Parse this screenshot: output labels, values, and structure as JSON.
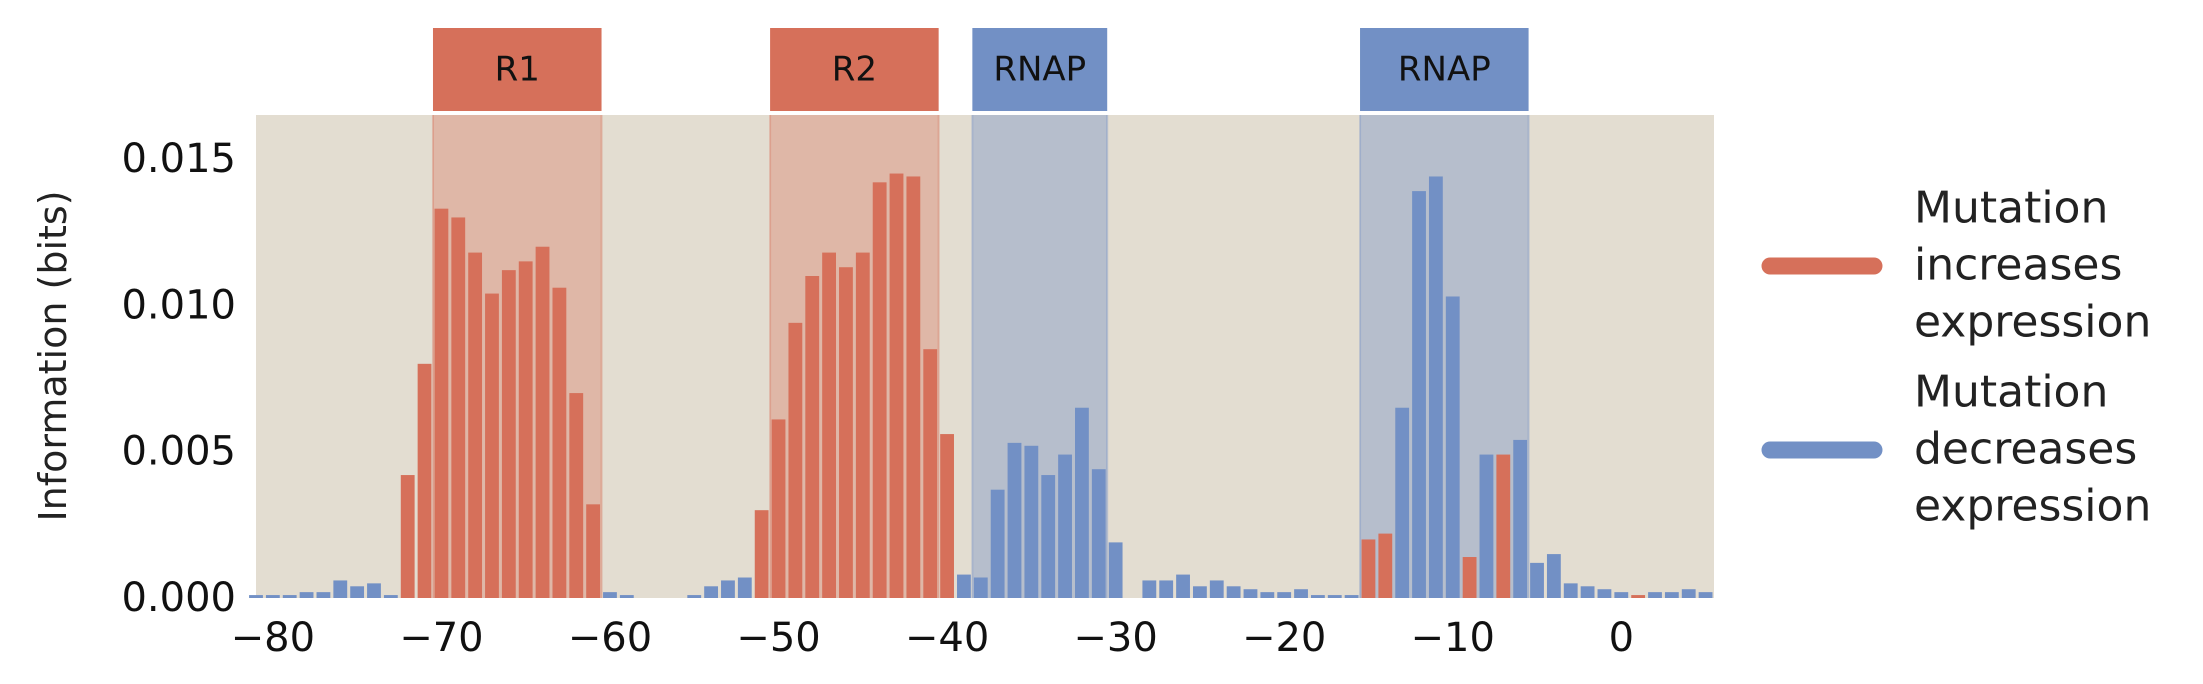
{
  "chart_data": {
    "type": "bar",
    "ylabel": "Information (bits)",
    "xlim": [
      -81,
      5.5
    ],
    "ylim": [
      0,
      0.0165
    ],
    "xticks": [
      -80,
      -70,
      -60,
      -50,
      -40,
      -30,
      -20,
      -10,
      0
    ],
    "xtick_labels": [
      "−80",
      "−70",
      "−60",
      "−50",
      "−40",
      "−30",
      "−20",
      "−10",
      "0"
    ],
    "yticks": [
      0.0,
      0.005,
      0.01,
      0.015
    ],
    "ytick_labels": [
      "0.000",
      "0.005",
      "0.010",
      "0.015"
    ],
    "grid": false,
    "background": "#e3ddd1",
    "colors": {
      "increase": "#d6705a",
      "decrease": "#7290c5"
    },
    "regions": [
      {
        "label": "R1",
        "start": -70.5,
        "end": -60.5,
        "type": "increase"
      },
      {
        "label": "R2",
        "start": -50.5,
        "end": -40.5,
        "type": "increase"
      },
      {
        "label": "RNAP",
        "start": -38.5,
        "end": -30.5,
        "type": "decrease"
      },
      {
        "label": "RNAP",
        "start": -15.5,
        "end": -5.5,
        "type": "decrease"
      }
    ],
    "series": [
      {
        "name": "Mutation increases expression",
        "key": "increase"
      },
      {
        "name": "Mutation decreases expression",
        "key": "decrease"
      }
    ],
    "legend": {
      "position": "right",
      "entries": [
        {
          "lines": [
            "Mutation",
            "increases",
            "expression"
          ],
          "key": "increase"
        },
        {
          "lines": [
            "Mutation",
            "decreases",
            "expression"
          ],
          "key": "decrease"
        }
      ]
    },
    "bars": [
      {
        "x": -81,
        "value": 0.0001,
        "type": "decrease"
      },
      {
        "x": -80,
        "value": 0.0001,
        "type": "decrease"
      },
      {
        "x": -79,
        "value": 0.0001,
        "type": "decrease"
      },
      {
        "x": -78,
        "value": 0.0002,
        "type": "decrease"
      },
      {
        "x": -77,
        "value": 0.0002,
        "type": "decrease"
      },
      {
        "x": -76,
        "value": 0.0006,
        "type": "decrease"
      },
      {
        "x": -75,
        "value": 0.0004,
        "type": "decrease"
      },
      {
        "x": -74,
        "value": 0.0005,
        "type": "decrease"
      },
      {
        "x": -73,
        "value": 0.0001,
        "type": "decrease"
      },
      {
        "x": -72,
        "value": 0.0042,
        "type": "increase"
      },
      {
        "x": -71,
        "value": 0.008,
        "type": "increase"
      },
      {
        "x": -70,
        "value": 0.0133,
        "type": "increase"
      },
      {
        "x": -69,
        "value": 0.013,
        "type": "increase"
      },
      {
        "x": -68,
        "value": 0.0118,
        "type": "increase"
      },
      {
        "x": -67,
        "value": 0.0104,
        "type": "increase"
      },
      {
        "x": -66,
        "value": 0.0112,
        "type": "increase"
      },
      {
        "x": -65,
        "value": 0.0115,
        "type": "increase"
      },
      {
        "x": -64,
        "value": 0.012,
        "type": "increase"
      },
      {
        "x": -63,
        "value": 0.0106,
        "type": "increase"
      },
      {
        "x": -62,
        "value": 0.007,
        "type": "increase"
      },
      {
        "x": -61,
        "value": 0.0032,
        "type": "increase"
      },
      {
        "x": -60,
        "value": 0.0002,
        "type": "decrease"
      },
      {
        "x": -59,
        "value": 0.0001,
        "type": "decrease"
      },
      {
        "x": -58,
        "value": 0.0,
        "type": "decrease"
      },
      {
        "x": -57,
        "value": 0.0,
        "type": "decrease"
      },
      {
        "x": -56,
        "value": 0.0,
        "type": "decrease"
      },
      {
        "x": -55,
        "value": 0.0001,
        "type": "decrease"
      },
      {
        "x": -54,
        "value": 0.0004,
        "type": "decrease"
      },
      {
        "x": -53,
        "value": 0.0006,
        "type": "decrease"
      },
      {
        "x": -52,
        "value": 0.0007,
        "type": "decrease"
      },
      {
        "x": -51,
        "value": 0.003,
        "type": "increase"
      },
      {
        "x": -50,
        "value": 0.0061,
        "type": "increase"
      },
      {
        "x": -49,
        "value": 0.0094,
        "type": "increase"
      },
      {
        "x": -48,
        "value": 0.011,
        "type": "increase"
      },
      {
        "x": -47,
        "value": 0.0118,
        "type": "increase"
      },
      {
        "x": -46,
        "value": 0.0113,
        "type": "increase"
      },
      {
        "x": -45,
        "value": 0.0118,
        "type": "increase"
      },
      {
        "x": -44,
        "value": 0.0142,
        "type": "increase"
      },
      {
        "x": -43,
        "value": 0.0145,
        "type": "increase"
      },
      {
        "x": -42,
        "value": 0.0144,
        "type": "increase"
      },
      {
        "x": -41,
        "value": 0.0085,
        "type": "increase"
      },
      {
        "x": -40,
        "value": 0.0056,
        "type": "increase"
      },
      {
        "x": -39,
        "value": 0.0008,
        "type": "decrease"
      },
      {
        "x": -38,
        "value": 0.0007,
        "type": "decrease"
      },
      {
        "x": -37,
        "value": 0.0037,
        "type": "decrease"
      },
      {
        "x": -36,
        "value": 0.0053,
        "type": "decrease"
      },
      {
        "x": -35,
        "value": 0.0052,
        "type": "decrease"
      },
      {
        "x": -34,
        "value": 0.0042,
        "type": "decrease"
      },
      {
        "x": -33,
        "value": 0.0049,
        "type": "decrease"
      },
      {
        "x": -32,
        "value": 0.0065,
        "type": "decrease"
      },
      {
        "x": -31,
        "value": 0.0044,
        "type": "decrease"
      },
      {
        "x": -30,
        "value": 0.0019,
        "type": "decrease"
      },
      {
        "x": -29,
        "value": 0.0,
        "type": "decrease"
      },
      {
        "x": -28,
        "value": 0.0006,
        "type": "decrease"
      },
      {
        "x": -27,
        "value": 0.0006,
        "type": "decrease"
      },
      {
        "x": -26,
        "value": 0.0008,
        "type": "decrease"
      },
      {
        "x": -25,
        "value": 0.0004,
        "type": "decrease"
      },
      {
        "x": -24,
        "value": 0.0006,
        "type": "decrease"
      },
      {
        "x": -23,
        "value": 0.0004,
        "type": "decrease"
      },
      {
        "x": -22,
        "value": 0.0003,
        "type": "decrease"
      },
      {
        "x": -21,
        "value": 0.0002,
        "type": "decrease"
      },
      {
        "x": -20,
        "value": 0.0002,
        "type": "decrease"
      },
      {
        "x": -19,
        "value": 0.0003,
        "type": "decrease"
      },
      {
        "x": -18,
        "value": 0.0001,
        "type": "decrease"
      },
      {
        "x": -17,
        "value": 0.0001,
        "type": "decrease"
      },
      {
        "x": -16,
        "value": 0.0001,
        "type": "decrease"
      },
      {
        "x": -15,
        "value": 0.002,
        "type": "increase"
      },
      {
        "x": -14,
        "value": 0.0022,
        "type": "increase"
      },
      {
        "x": -13,
        "value": 0.0065,
        "type": "decrease"
      },
      {
        "x": -12,
        "value": 0.0139,
        "type": "decrease"
      },
      {
        "x": -11,
        "value": 0.0144,
        "type": "decrease"
      },
      {
        "x": -10,
        "value": 0.0103,
        "type": "decrease"
      },
      {
        "x": -9,
        "value": 0.0014,
        "type": "increase"
      },
      {
        "x": -8,
        "value": 0.0049,
        "type": "decrease"
      },
      {
        "x": -7,
        "value": 0.0049,
        "type": "increase"
      },
      {
        "x": -6,
        "value": 0.0054,
        "type": "decrease"
      },
      {
        "x": -5,
        "value": 0.0012,
        "type": "decrease"
      },
      {
        "x": -4,
        "value": 0.0015,
        "type": "decrease"
      },
      {
        "x": -3,
        "value": 0.0005,
        "type": "decrease"
      },
      {
        "x": -2,
        "value": 0.0004,
        "type": "decrease"
      },
      {
        "x": -1,
        "value": 0.0003,
        "type": "decrease"
      },
      {
        "x": 0,
        "value": 0.0002,
        "type": "decrease"
      },
      {
        "x": 1,
        "value": 0.0001,
        "type": "increase"
      },
      {
        "x": 2,
        "value": 0.0002,
        "type": "decrease"
      },
      {
        "x": 3,
        "value": 0.0002,
        "type": "decrease"
      },
      {
        "x": 4,
        "value": 0.0003,
        "type": "decrease"
      },
      {
        "x": 5,
        "value": 0.0002,
        "type": "decrease"
      }
    ]
  }
}
